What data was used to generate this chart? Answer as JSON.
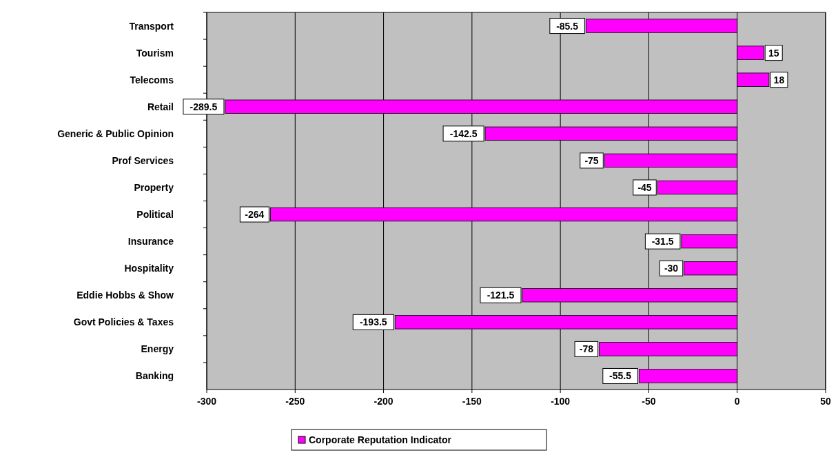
{
  "chart_data": {
    "type": "bar",
    "orientation": "horizontal",
    "categories": [
      "Transport",
      "Tourism",
      "Telecoms",
      "Retail",
      "Generic & Public Opinion",
      "Prof Services",
      "Property",
      "Political",
      "Insurance",
      "Hospitality",
      "Eddie Hobbs & Show",
      "Govt Policies & Taxes",
      "Energy",
      "Banking"
    ],
    "series": [
      {
        "name": "Corporate Reputation Indicator",
        "color": "#ff00ff",
        "values": [
          -85.5,
          15,
          18,
          -289.5,
          -142.5,
          -75,
          -45,
          -264,
          -31.5,
          -30,
          -121.5,
          -193.5,
          -78,
          -55.5
        ]
      }
    ],
    "xlim": [
      -300,
      50
    ],
    "xticks": [
      -300,
      -250,
      -200,
      -150,
      -100,
      -50,
      0,
      50
    ],
    "grid": "x",
    "legend": "bottom",
    "data_labels": true
  }
}
